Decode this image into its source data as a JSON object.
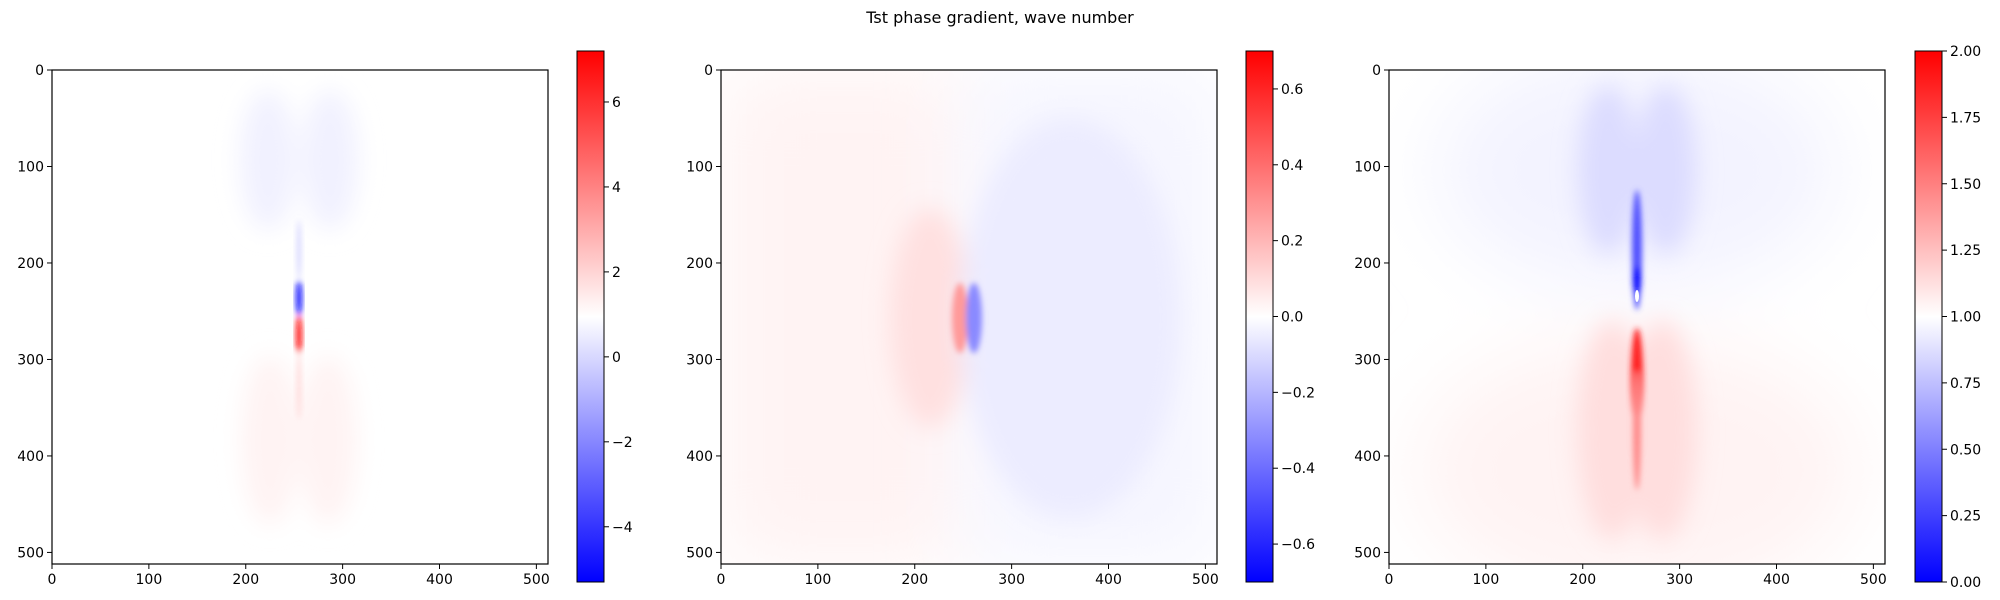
{
  "figure": {
    "title": "Tst phase gradient, wave number"
  },
  "chart_data": [
    {
      "type": "heatmap",
      "colormap": "bwr",
      "colors": {
        "low": "#0000ff",
        "mid": "#ffffff",
        "high": "#ff0000"
      },
      "xlim": [
        0,
        512
      ],
      "ylim": [
        512,
        0
      ],
      "x_ticks": [
        0,
        100,
        200,
        300,
        400,
        500
      ],
      "y_ticks": [
        0,
        100,
        200,
        300,
        400,
        500
      ],
      "colorbar": {
        "range": [
          -5.3,
          7.2
        ],
        "ticks": [
          -4,
          -2,
          0,
          2,
          4,
          6
        ],
        "tick_labels": [
          "−4",
          "−2",
          "0",
          "2",
          "4",
          "6"
        ]
      },
      "features": "Four faint lobes around a vertical line at x≈256; faint blue lobes above, faint red lobes below; strong blue spot at y≈240 and strong red spot at y≈270"
    },
    {
      "type": "heatmap",
      "colormap": "bwr",
      "colors": {
        "low": "#0000ff",
        "mid": "#ffffff",
        "high": "#ff0000"
      },
      "xlim": [
        0,
        512
      ],
      "ylim": [
        512,
        0
      ],
      "x_ticks": [
        0,
        100,
        200,
        300,
        400,
        500
      ],
      "y_ticks": [
        0,
        100,
        200,
        300,
        400,
        500
      ],
      "colorbar": {
        "range": [
          -0.7,
          0.7
        ],
        "ticks": [
          -0.6,
          -0.4,
          -0.2,
          0.0,
          0.2,
          0.4,
          0.6
        ],
        "tick_labels": [
          "−0.6",
          "−0.4",
          "−0.2",
          "0.0",
          "0.2",
          "0.4",
          "0.6"
        ]
      },
      "features": "Dipole centered at (256, 256): red on the left half, blue on the right half, strongest near the center"
    },
    {
      "type": "heatmap",
      "colormap": "bwr",
      "colors": {
        "low": "#0000ff",
        "mid": "#ffffff",
        "high": "#ff0000"
      },
      "xlim": [
        0,
        512
      ],
      "ylim": [
        512,
        0
      ],
      "x_ticks": [
        0,
        100,
        200,
        300,
        400,
        500
      ],
      "y_ticks": [
        0,
        100,
        200,
        300,
        400,
        500
      ],
      "colorbar": {
        "range": [
          0.0,
          2.0
        ],
        "ticks": [
          0.0,
          0.25,
          0.5,
          0.75,
          1.0,
          1.25,
          1.5,
          1.75,
          2.0
        ],
        "tick_labels": [
          "0.00",
          "0.25",
          "0.50",
          "0.75",
          "1.00",
          "1.25",
          "1.50",
          "1.75",
          "2.00"
        ]
      },
      "features": "Centered near 1.00; blue (low) lobes above the center, red (high) lobes below; sharp vertical streak along x≈256"
    }
  ]
}
